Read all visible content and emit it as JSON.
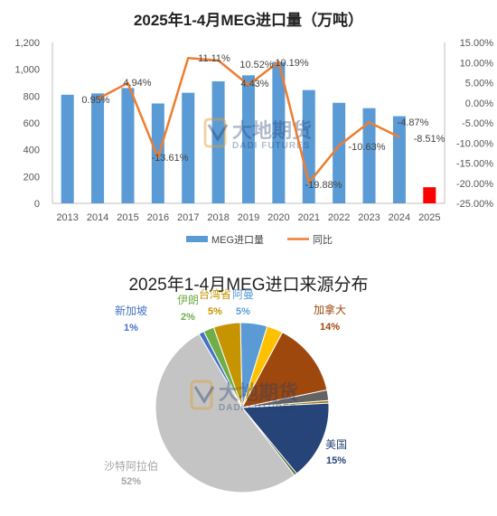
{
  "chart_data": [
    {
      "type": "bar+line",
      "title": "2025年1-4月MEG进口量（万吨）",
      "categories": [
        "2013",
        "2014",
        "2015",
        "2016",
        "2017",
        "2018",
        "2019",
        "2020",
        "2021",
        "2022",
        "2023",
        "2024",
        "2025"
      ],
      "series": [
        {
          "name": "MEG进口量",
          "type": "bar",
          "axis": "left",
          "color": "#5b9bd5",
          "values": [
            810,
            820,
            860,
            745,
            825,
            910,
            955,
            1055,
            845,
            750,
            710,
            650,
            120
          ]
        },
        {
          "name": "同比",
          "type": "line",
          "axis": "right",
          "color": "#ed7d31",
          "values": [
            null,
            0.95,
            4.94,
            -13.61,
            11.11,
            10.52,
            4.43,
            10.19,
            -19.88,
            -10.63,
            -4.87,
            -8.51,
            null
          ]
        }
      ],
      "highlight": {
        "category": "2025",
        "color": "#ff0000"
      },
      "data_labels": [
        "0.95%",
        "4.94%",
        "-13.61%",
        "11.11%",
        "10.52%",
        "4.43%",
        "10.19%",
        "-19.88%",
        "-10.63%",
        "-4.87%",
        "-8.51%"
      ],
      "ylim_left": [
        0,
        1200
      ],
      "left_ticks": [
        "0",
        "200",
        "400",
        "600",
        "800",
        "1,000",
        "1,200"
      ],
      "ylim_right": [
        -25,
        15
      ],
      "right_ticks": [
        "-25.00%",
        "-20.00%",
        "-15.00%",
        "-10.00%",
        "-5.00%",
        "0.00%",
        "5.00%",
        "10.00%",
        "15.00%"
      ],
      "legend": {
        "position": "bottom",
        "items": [
          "MEG进口量",
          "同比"
        ]
      },
      "grid": false
    },
    {
      "type": "pie",
      "title": "2025年1-4月MEG进口来源分布",
      "slices": [
        {
          "name": "阿曼",
          "value": 5,
          "color": "#5b9bd5",
          "label_color": "#5b9bd5"
        },
        {
          "name": "",
          "value": 3,
          "color": "#ffc000",
          "label_color": "#c09000"
        },
        {
          "name": "加拿大",
          "value": 14,
          "color": "#9e480e",
          "label_color": "#9e480e"
        },
        {
          "name": "",
          "value": 2,
          "color": "#636363",
          "label_color": "#636363"
        },
        {
          "name": "",
          "value": 0.5,
          "color": "#997300",
          "label_color": "#997300"
        },
        {
          "name": "美国",
          "value": 15,
          "color": "#264478",
          "label_color": "#264478"
        },
        {
          "name": "",
          "value": 0.5,
          "color": "#43682b",
          "label_color": "#43682b"
        },
        {
          "name": "沙特阿拉伯",
          "value": 52,
          "color": "#c4c4c4",
          "label_color": "#a5a5a5"
        },
        {
          "name": "新加坡",
          "value": 1,
          "color": "#4472c4",
          "label_color": "#4472c4"
        },
        {
          "name": "伊朗",
          "value": 2,
          "color": "#70ad47",
          "label_color": "#70ad47"
        },
        {
          "name": "台湾省",
          "value": 5,
          "color": "#c59400",
          "label_color": "#c59400"
        }
      ],
      "visible_labels": {
        "oman": {
          "name": "阿曼",
          "pct": "5%"
        },
        "canada": {
          "name": "加拿大",
          "pct": "14%"
        },
        "usa": {
          "name": "美国",
          "pct": "15%"
        },
        "saudi": {
          "name": "沙特阿拉伯",
          "pct": "52%"
        },
        "singapore": {
          "name": "新加坡",
          "pct": "1%"
        },
        "iran": {
          "name": "伊朗",
          "pct": "2%"
        },
        "taiwan": {
          "name": "台湾省",
          "pct": "5%"
        }
      }
    }
  ],
  "watermark": {
    "text": "大地期货",
    "sub": "DADI FUTURES"
  }
}
